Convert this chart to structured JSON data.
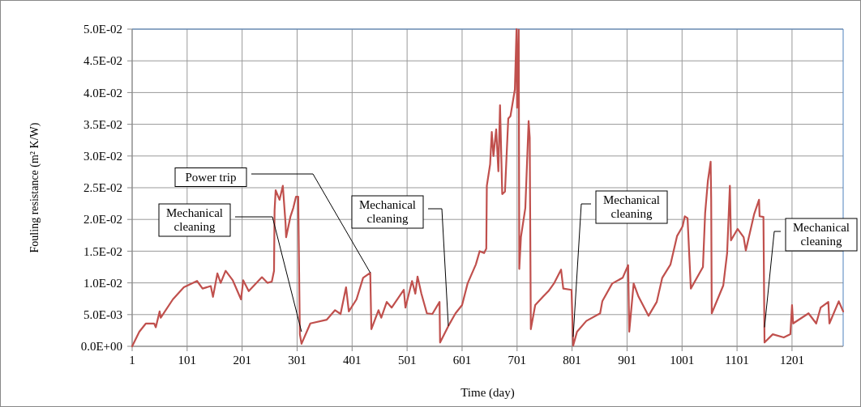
{
  "chart_data": {
    "type": "line",
    "xlabel": "Time (day)",
    "ylabel": "Fouling resistance (m² K/W)",
    "xlim": [
      1,
      1294
    ],
    "xticks": [
      1,
      101,
      201,
      301,
      401,
      501,
      601,
      701,
      801,
      901,
      1001,
      1101,
      1201
    ],
    "ylim": [
      0,
      0.05
    ],
    "yticks": [
      {
        "value": 0,
        "label": "0.0E+00"
      },
      {
        "value": 0.005,
        "label": "5.0E-03"
      },
      {
        "value": 0.01,
        "label": "1.0E-02"
      },
      {
        "value": 0.015,
        "label": "1.5E-02"
      },
      {
        "value": 0.02,
        "label": "2.0E-02"
      },
      {
        "value": 0.025,
        "label": "2.5E-02"
      },
      {
        "value": 0.03,
        "label": "3.0E-02"
      },
      {
        "value": 0.035,
        "label": "3.5E-02"
      },
      {
        "value": 0.04,
        "label": "4.0E-02"
      },
      {
        "value": 0.045,
        "label": "4.5E-02"
      },
      {
        "value": 0.05,
        "label": "5.0E-02"
      }
    ],
    "grid": true,
    "marker": "none",
    "line_style": "solid",
    "series": [
      {
        "color": "#c0504d",
        "x": [
          1,
          14,
          26,
          41,
          44,
          51,
          53,
          75,
          95,
          119,
          129,
          144,
          148,
          156,
          162,
          171,
          184,
          199,
          203,
          213,
          237,
          247,
          255,
          259,
          260,
          262,
          269,
          275,
          280,
          281,
          289,
          294,
          299,
          303,
          306,
          309,
          325,
          355,
          370,
          380,
          390,
          395,
          409,
          421,
          434,
          436,
          449,
          454,
          464,
          473,
          495,
          498,
          510,
          516,
          520,
          527,
          537,
          547,
          560,
          561,
          576,
          589,
          601,
          611,
          626,
          633,
          641,
          645,
          646,
          652,
          655,
          658,
          663,
          667,
          670,
          674,
          679,
          685,
          689,
          697,
          700,
          701,
          704,
          705,
          708,
          716,
          722,
          724,
          726,
          734,
          748,
          758,
          768,
          781,
          785,
          800,
          803,
          810,
          827,
          852,
          856,
          874,
          893,
          903,
          905,
          913,
          922,
          940,
          955,
          965,
          980,
          992,
          1002,
          1006,
          1011,
          1017,
          1039,
          1043,
          1048,
          1053,
          1054,
          1055,
          1076,
          1083,
          1088,
          1090,
          1102,
          1113,
          1117,
          1132,
          1141,
          1142,
          1149,
          1151,
          1166,
          1186,
          1198,
          1201,
          1203,
          1231,
          1245,
          1253,
          1267,
          1269,
          1286,
          1294
        ],
        "values": [
          0,
          0.0023,
          0.0036,
          0.0036,
          0.003,
          0.0055,
          0.0045,
          0.0074,
          0.0093,
          0.0103,
          0.0091,
          0.0095,
          0.0078,
          0.0115,
          0.01,
          0.0119,
          0.0104,
          0.0074,
          0.0104,
          0.0087,
          0.0109,
          0.01,
          0.0102,
          0.0119,
          0.0214,
          0.0246,
          0.0231,
          0.0253,
          0.0193,
          0.0172,
          0.0205,
          0.0218,
          0.0236,
          0.0236,
          0.0019,
          0.0004,
          0.0036,
          0.0042,
          0.0057,
          0.0051,
          0.0093,
          0.0055,
          0.0074,
          0.0108,
          0.0116,
          0.0027,
          0.0057,
          0.0045,
          0.007,
          0.0061,
          0.0089,
          0.0061,
          0.0103,
          0.0083,
          0.011,
          0.0083,
          0.0052,
          0.0051,
          0.007,
          0.0006,
          0.0032,
          0.0052,
          0.0065,
          0.0099,
          0.0129,
          0.015,
          0.0147,
          0.0154,
          0.0253,
          0.0287,
          0.0338,
          0.03,
          0.0342,
          0.0276,
          0.038,
          0.024,
          0.0244,
          0.0359,
          0.0363,
          0.0405,
          0.05,
          0.0376,
          0.0499,
          0.0122,
          0.0172,
          0.0218,
          0.0355,
          0.0329,
          0.0027,
          0.0065,
          0.0078,
          0.0087,
          0.0099,
          0.0121,
          0.0091,
          0.0089,
          0.0001,
          0.0023,
          0.004,
          0.0052,
          0.0071,
          0.0099,
          0.0108,
          0.0128,
          0.0023,
          0.0099,
          0.0078,
          0.0048,
          0.007,
          0.0108,
          0.0129,
          0.0174,
          0.0189,
          0.0205,
          0.0202,
          0.0091,
          0.0125,
          0.021,
          0.0261,
          0.0291,
          0.0231,
          0.0052,
          0.0096,
          0.0147,
          0.0253,
          0.0167,
          0.0185,
          0.0172,
          0.0151,
          0.0208,
          0.0231,
          0.0205,
          0.0204,
          0.0006,
          0.0019,
          0.0014,
          0.0019,
          0.0065,
          0.0036,
          0.0052,
          0.0036,
          0.0061,
          0.007,
          0.0036,
          0.0071,
          0.0055
        ]
      }
    ],
    "annotations": [
      {
        "text": "Power trip",
        "x": 434,
        "y": 0.0116
      },
      {
        "text": "Mechanical cleaning",
        "x": 309,
        "y": 0.0023
      },
      {
        "text": "Mechanical cleaning",
        "x": 576,
        "y": 0.0032
      },
      {
        "text": "Mechanical cleaning",
        "x": 803,
        "y": 0.0015
      },
      {
        "text": "Mechanical cleaning",
        "x": 1151,
        "y": 0.003
      }
    ]
  }
}
